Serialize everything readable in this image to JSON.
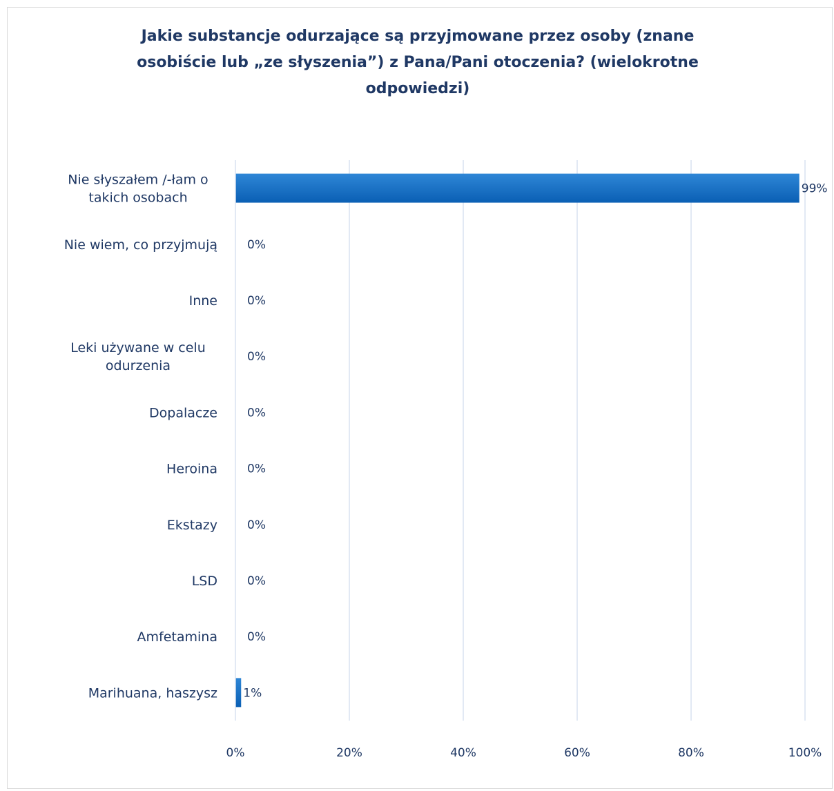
{
  "chart_data": {
    "type": "bar",
    "orientation": "horizontal",
    "title": "Jakie substancje odurzające są przyjmowane przez osoby (znane osobiście lub „ze słyszenia”) z Pana/Pani otoczenia? (wielokrotne odpowiedzi)",
    "title_lines": [
      "Jakie substancje odurzające są przyjmowane przez osoby (znane",
      "osobiście lub „ze słyszenia”) z Pana/Pani otoczenia? (wielokrotne",
      "odpowiedzi)"
    ],
    "categories": [
      "Nie słyszałem /-łam o takich osobach",
      "Nie wiem, co przyjmują",
      "Inne",
      "Leki używane w celu odurzenia",
      "Dopalacze",
      "Heroina",
      "Ekstazy",
      "LSD",
      "Amfetamina",
      "Marihuana, haszysz"
    ],
    "category_lines": [
      [
        "Nie słyszałem /-łam o",
        "takich osobach"
      ],
      [
        "Nie wiem, co przyjmują"
      ],
      [
        "Inne"
      ],
      [
        "Leki używane w celu",
        "odurzenia"
      ],
      [
        "Dopalacze"
      ],
      [
        "Heroina"
      ],
      [
        "Ekstazy"
      ],
      [
        "LSD"
      ],
      [
        "Amfetamina"
      ],
      [
        "Marihuana, haszysz"
      ]
    ],
    "values": [
      99,
      0,
      0,
      0,
      0,
      0,
      0,
      0,
      0,
      1
    ],
    "data_labels": [
      "99%",
      "0%",
      "0%",
      "0%",
      "0%",
      "0%",
      "0%",
      "0%",
      "0%",
      "1%"
    ],
    "xlim": [
      0,
      100
    ],
    "xticks": [
      0,
      20,
      40,
      60,
      80,
      100
    ],
    "xtick_labels": [
      "0%",
      "20%",
      "40%",
      "60%",
      "80%",
      "100%"
    ],
    "grid": true,
    "legend": "none",
    "colors": {
      "bar_top": "#2e86d6",
      "bar_bottom": "#0a5fb4",
      "text": "#1f3864",
      "grid": "#d9e2f0"
    }
  }
}
